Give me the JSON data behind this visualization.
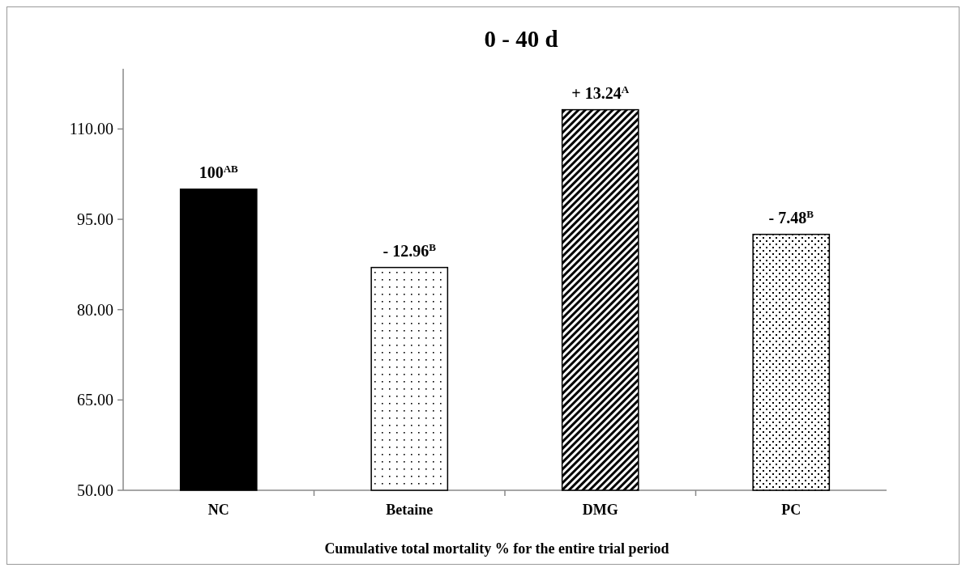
{
  "chart_data": {
    "type": "bar",
    "title": "0 - 40 d",
    "xlabel": "Cumulative total mortality % for the entire trial period",
    "categories": [
      "NC",
      "Betaine",
      "DMG",
      "PC"
    ],
    "values": [
      100,
      87,
      113.2,
      92.5
    ],
    "colors": [
      "#000000",
      "#000000",
      "#000000",
      "#000000"
    ],
    "annotations": [
      {
        "text": "100$^{AB}$",
        "x": "NC",
        "y": 100
      },
      {
        "text": "- 12.96$^{B}$",
        "x": "Betaine",
        "y": 87
      },
      {
        "text": "+ 13.24$^{A}$",
        "x": "DMG",
        "y": 113.2
      },
      {
        "text": "- 7.48$^{B}$",
        "x": "PC",
        "y": 92.5
      }
    ],
    "ylim": [
      50,
      120
    ],
    "yticks": [
      {
        "value": 50,
        "label": "50.00"
      },
      {
        "value": 65,
        "label": "65.00"
      },
      {
        "value": 80,
        "label": "80.00"
      },
      {
        "value": 95,
        "label": "95.00"
      },
      {
        "value": 110,
        "label": "110.00"
      }
    ],
    "grid": false
  }
}
